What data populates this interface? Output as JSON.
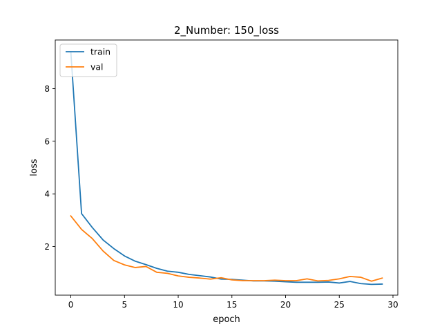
{
  "chart_data": {
    "type": "line",
    "title": "2_Number: 150_loss",
    "xlabel": "epoch",
    "ylabel": "loss",
    "xlim": [
      -1.45,
      30.45
    ],
    "ylim": [
      0.15,
      9.85
    ],
    "xticks": [
      0,
      5,
      10,
      15,
      20,
      25,
      30
    ],
    "yticks": [
      2,
      4,
      6,
      8
    ],
    "grid": false,
    "legend_position": "top-left",
    "x": [
      0,
      1,
      2,
      3,
      4,
      5,
      6,
      7,
      8,
      9,
      10,
      11,
      12,
      13,
      14,
      15,
      16,
      17,
      18,
      19,
      20,
      21,
      22,
      23,
      24,
      25,
      26,
      27,
      28,
      29
    ],
    "series": [
      {
        "name": "train",
        "color": "#1f77b4",
        "values": [
          9.4,
          3.25,
          2.72,
          2.25,
          1.92,
          1.64,
          1.44,
          1.31,
          1.17,
          1.06,
          1.02,
          0.94,
          0.89,
          0.84,
          0.76,
          0.75,
          0.72,
          0.69,
          0.69,
          0.68,
          0.66,
          0.64,
          0.64,
          0.64,
          0.65,
          0.61,
          0.67,
          0.59,
          0.56,
          0.57
        ]
      },
      {
        "name": "val",
        "color": "#ff7f0e",
        "values": [
          3.16,
          2.65,
          2.3,
          1.83,
          1.47,
          1.3,
          1.2,
          1.24,
          1.02,
          0.98,
          0.88,
          0.83,
          0.8,
          0.76,
          0.81,
          0.73,
          0.7,
          0.7,
          0.7,
          0.72,
          0.7,
          0.7,
          0.77,
          0.69,
          0.71,
          0.77,
          0.86,
          0.83,
          0.68,
          0.8
        ]
      }
    ]
  }
}
